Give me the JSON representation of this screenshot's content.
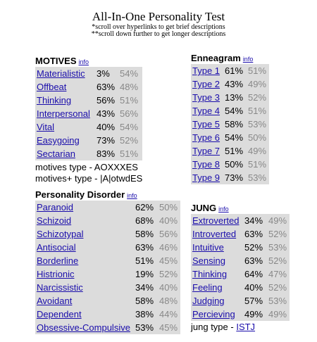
{
  "header": {
    "title": "All-In-One Personality Test",
    "hint1": "*scroll over hyperlinks to get brief descriptions",
    "hint2": "**scroll down further to get longer descriptions"
  },
  "info_label": "info",
  "motives": {
    "title": "MOTIVES",
    "rows": [
      {
        "label": "Materialistic",
        "v1": "3%",
        "v2": "54%"
      },
      {
        "label": "Offbeat",
        "v1": "63%",
        "v2": "48%"
      },
      {
        "label": "Thinking",
        "v1": "56%",
        "v2": "51%"
      },
      {
        "label": "Interpersonal",
        "v1": "43%",
        "v2": "56%"
      },
      {
        "label": "Vital",
        "v1": "40%",
        "v2": "54%"
      },
      {
        "label": "Easygoing",
        "v1": "73%",
        "v2": "52%"
      },
      {
        "label": "Sectarian",
        "v1": "83%",
        "v2": "51%"
      }
    ],
    "type_line": "motives type - AOXXXES",
    "type_plus_line": "motives+ type - |A|otwdES"
  },
  "enneagram": {
    "title": "Enneagram",
    "rows": [
      {
        "label": "Type 1",
        "v1": "61%",
        "v2": "51%"
      },
      {
        "label": "Type 2",
        "v1": "43%",
        "v2": "49%"
      },
      {
        "label": "Type 3",
        "v1": "13%",
        "v2": "52%"
      },
      {
        "label": "Type 4",
        "v1": "54%",
        "v2": "51%"
      },
      {
        "label": "Type 5",
        "v1": "58%",
        "v2": "53%"
      },
      {
        "label": "Type 6",
        "v1": "54%",
        "v2": "50%"
      },
      {
        "label": "Type 7",
        "v1": "51%",
        "v2": "49%"
      },
      {
        "label": "Type 8",
        "v1": "50%",
        "v2": "51%"
      },
      {
        "label": "Type 9",
        "v1": "73%",
        "v2": "53%"
      }
    ]
  },
  "disorder": {
    "title": "Personality Disorder",
    "rows": [
      {
        "label": "Paranoid",
        "v1": "62%",
        "v2": "50%"
      },
      {
        "label": "Schizoid",
        "v1": "68%",
        "v2": "40%"
      },
      {
        "label": "Schizotypal",
        "v1": "58%",
        "v2": "56%"
      },
      {
        "label": "Antisocial",
        "v1": "63%",
        "v2": "46%"
      },
      {
        "label": "Borderline",
        "v1": "51%",
        "v2": "45%"
      },
      {
        "label": "Histrionic",
        "v1": "19%",
        "v2": "52%"
      },
      {
        "label": "Narcissistic",
        "v1": "34%",
        "v2": "40%"
      },
      {
        "label": "Avoidant",
        "v1": "58%",
        "v2": "48%"
      },
      {
        "label": "Dependent",
        "v1": "38%",
        "v2": "44%"
      },
      {
        "label": "Obsessive-Compulsive",
        "v1": "53%",
        "v2": "45%"
      }
    ]
  },
  "jung": {
    "title": "JUNG",
    "rows": [
      {
        "label": "Extroverted",
        "v1": "34%",
        "v2": "49%"
      },
      {
        "label": "Introverted",
        "v1": "63%",
        "v2": "52%"
      },
      {
        "label": "Intuitive",
        "v1": "52%",
        "v2": "53%"
      },
      {
        "label": "Sensing",
        "v1": "63%",
        "v2": "52%"
      },
      {
        "label": "Thinking",
        "v1": "64%",
        "v2": "47%"
      },
      {
        "label": "Feeling",
        "v1": "40%",
        "v2": "52%"
      },
      {
        "label": "Judging",
        "v1": "57%",
        "v2": "53%"
      },
      {
        "label": "Percieving",
        "v1": "49%",
        "v2": "49%"
      }
    ],
    "type_prefix": "jung type - ",
    "type_value": "ISTJ"
  }
}
